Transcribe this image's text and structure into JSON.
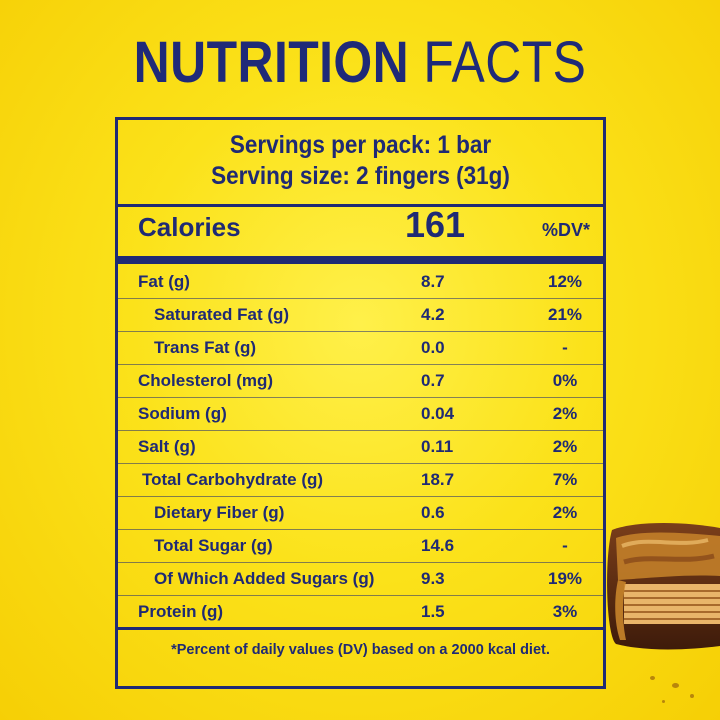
{
  "title": {
    "bold": "NUTRITION",
    "light": "FACTS"
  },
  "servings": {
    "per_pack": "Servings per pack: 1 bar",
    "size": "Serving size: 2 fingers (31g)"
  },
  "calories": {
    "label": "Calories",
    "value": "161",
    "dv_header": "%DV*"
  },
  "rows": [
    {
      "name": "Fat (g)",
      "amount": "8.7",
      "dv": "12%"
    },
    {
      "name": "Saturated Fat (g)",
      "amount": "4.2",
      "dv": "21%"
    },
    {
      "name": "Trans Fat (g)",
      "amount": "0.0",
      "dv": "-"
    },
    {
      "name": "Cholesterol (mg)",
      "amount": "0.7",
      "dv": "0%"
    },
    {
      "name": "Sodium (g)",
      "amount": "0.04",
      "dv": "2%"
    },
    {
      "name": "Salt (g)",
      "amount": "0.11",
      "dv": "2%"
    },
    {
      "name": "Total Carbohydrate (g)",
      "amount": "18.7",
      "dv": "7%"
    },
    {
      "name": "Dietary Fiber (g)",
      "amount": "0.6",
      "dv": "2%"
    },
    {
      "name": "Total Sugar (g)",
      "amount": "14.6",
      "dv": "-"
    },
    {
      "name": "Of Which Added Sugars (g)",
      "amount": "9.3",
      "dv": "19%"
    },
    {
      "name": "Protein (g)",
      "amount": "1.5",
      "dv": "3%"
    }
  ],
  "footnote": "*Percent of daily values (DV) based on a 2000 kcal diet.",
  "colors": {
    "text": "#1f2a74",
    "background": "#fbe21a",
    "chocolate": "#5a2d12",
    "caramel": "#c8842a"
  },
  "icons": {
    "product": "chocolate-bar-image"
  }
}
